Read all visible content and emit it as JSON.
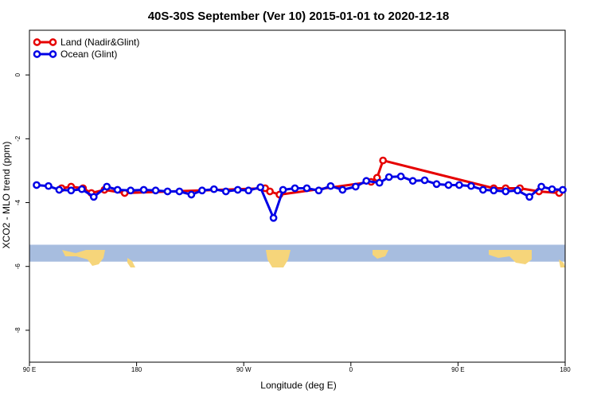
{
  "chart_data": {
    "type": "line",
    "title": "40S-30S September (Ver 10)   2015-01-01 to 2020-12-18",
    "xlabel": "Longitude (deg E)",
    "ylabel": "XCO2 - MLO trend (ppm)",
    "xlim": [
      90,
      540
    ],
    "ylim": [
      -9.0,
      1.4
    ],
    "x_ticks": [
      {
        "value": 90,
        "label": "90 E"
      },
      {
        "value": 180,
        "label": "180"
      },
      {
        "value": 270,
        "label": "90 W"
      },
      {
        "value": 360,
        "label": "0"
      },
      {
        "value": 450,
        "label": "90 E"
      },
      {
        "value": 540,
        "label": "180"
      }
    ],
    "y_ticks": [
      {
        "value": 0,
        "label": "0"
      },
      {
        "value": -2,
        "label": "-2"
      },
      {
        "value": -4,
        "label": "-4"
      },
      {
        "value": -6,
        "label": "-6"
      },
      {
        "value": -8,
        "label": "-8"
      }
    ],
    "legend_position": "top-left",
    "map_strip_yrange": [
      -5.32,
      -5.85
    ],
    "series": [
      {
        "name": "Land (Nadir&Glint)",
        "color": "#e60000",
        "points": [
          [
            117,
            -3.55
          ],
          [
            125,
            -3.5
          ],
          [
            135,
            -3.55
          ],
          [
            142,
            -3.7
          ],
          [
            153,
            -3.6
          ],
          [
            170,
            -3.7
          ],
          [
            288,
            -3.55
          ],
          [
            292,
            -3.65
          ],
          [
            300,
            -3.75
          ],
          [
            377,
            -3.35
          ],
          [
            382,
            -3.22
          ],
          [
            387,
            -2.68
          ],
          [
            480,
            -3.55
          ],
          [
            490,
            -3.55
          ],
          [
            502,
            -3.55
          ],
          [
            518,
            -3.65
          ],
          [
            535,
            -3.7
          ]
        ]
      },
      {
        "name": "Ocean (Glint)",
        "color": "#0000e6",
        "points": [
          [
            96,
            -3.45
          ],
          [
            106,
            -3.48
          ],
          [
            115,
            -3.6
          ],
          [
            125,
            -3.62
          ],
          [
            134,
            -3.58
          ],
          [
            144,
            -3.82
          ],
          [
            155,
            -3.5
          ],
          [
            164,
            -3.6
          ],
          [
            175,
            -3.62
          ],
          [
            186,
            -3.6
          ],
          [
            196,
            -3.62
          ],
          [
            206,
            -3.65
          ],
          [
            216,
            -3.65
          ],
          [
            226,
            -3.75
          ],
          [
            235,
            -3.62
          ],
          [
            245,
            -3.58
          ],
          [
            255,
            -3.65
          ],
          [
            265,
            -3.6
          ],
          [
            274,
            -3.62
          ],
          [
            284,
            -3.52
          ],
          [
            295,
            -4.48
          ],
          [
            303,
            -3.6
          ],
          [
            313,
            -3.55
          ],
          [
            323,
            -3.55
          ],
          [
            333,
            -3.62
          ],
          [
            343,
            -3.48
          ],
          [
            353,
            -3.6
          ],
          [
            364,
            -3.5
          ],
          [
            373,
            -3.32
          ],
          [
            384,
            -3.38
          ],
          [
            392,
            -3.2
          ],
          [
            402,
            -3.18
          ],
          [
            412,
            -3.32
          ],
          [
            422,
            -3.3
          ],
          [
            432,
            -3.42
          ],
          [
            442,
            -3.45
          ],
          [
            451,
            -3.45
          ],
          [
            461,
            -3.48
          ],
          [
            471,
            -3.6
          ],
          [
            480,
            -3.62
          ],
          [
            490,
            -3.65
          ],
          [
            500,
            -3.62
          ],
          [
            510,
            -3.82
          ],
          [
            520,
            -3.5
          ],
          [
            529,
            -3.58
          ],
          [
            538,
            -3.6
          ]
        ]
      }
    ]
  }
}
